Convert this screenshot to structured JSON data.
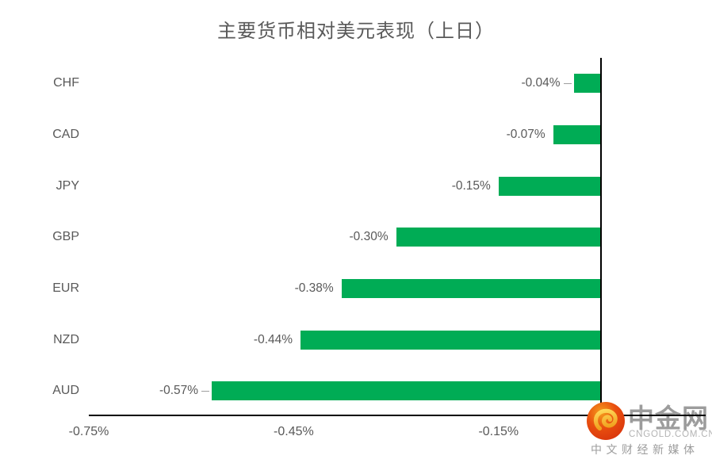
{
  "title": "主要货币相对美元表现（上日）",
  "chart_data": {
    "type": "bar",
    "orientation": "horizontal",
    "title": "主要货币相对美元表现（上日）",
    "categories": [
      "CHF",
      "CAD",
      "JPY",
      "GBP",
      "EUR",
      "NZD",
      "AUD"
    ],
    "values": [
      -0.04,
      -0.07,
      -0.15,
      -0.3,
      -0.38,
      -0.44,
      -0.57
    ],
    "value_labels": [
      "-0.04%",
      "-0.07%",
      "-0.15%",
      "-0.30%",
      "-0.38%",
      "-0.44%",
      "-0.57%"
    ],
    "unit": "%",
    "xlim": [
      -0.75,
      0.15
    ],
    "x_ticks": [
      {
        "value": -0.75,
        "label": "-0.75%"
      },
      {
        "value": -0.45,
        "label": "-0.45%"
      },
      {
        "value": -0.15,
        "label": "-0.15%"
      }
    ],
    "leader_line_indices": [
      0,
      6
    ],
    "grid": false,
    "legend": false,
    "bar_color": "#00AC55",
    "text_color": "#595959",
    "axis_color": "#000000"
  },
  "watermark": {
    "brand": "中金网",
    "domain": "CNGOLD.COM.CN",
    "tagline": "中文财经新媒体"
  }
}
